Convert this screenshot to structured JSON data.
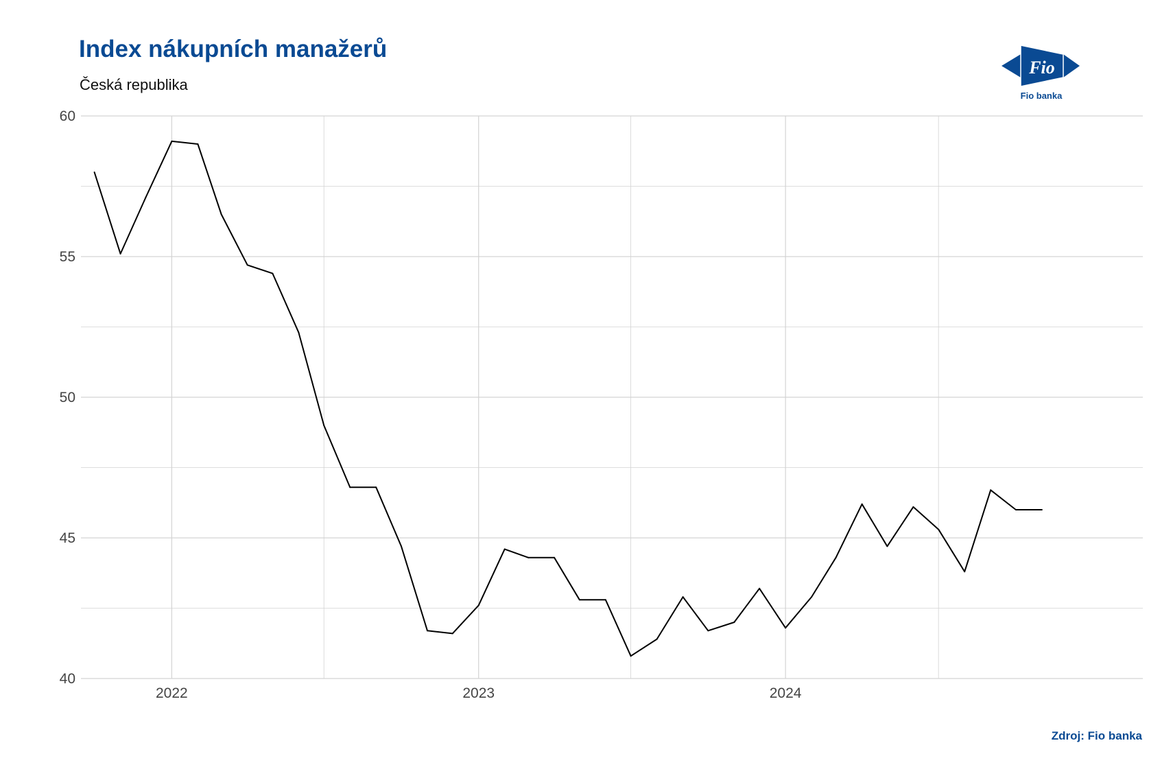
{
  "header": {
    "title": "Index nákupních manažerů",
    "subtitle": "Česká republika"
  },
  "logo": {
    "mark_text": "Fio",
    "caption": "Fio banka",
    "color": "#0a4a93"
  },
  "footer": {
    "source": "Zdroj: Fio banka"
  },
  "colors": {
    "line": "#000000",
    "grid": "#d3d3d3",
    "brand": "#0a4a93"
  },
  "chart_data": {
    "type": "line",
    "title": "Index nákupních manažerů",
    "subtitle": "Česká republika",
    "xlabel": "",
    "ylabel": "",
    "grid": true,
    "ylim": [
      40,
      60
    ],
    "y_ticks": [
      40,
      45,
      50,
      55,
      60
    ],
    "x_range": [
      "2021-09-15",
      "2025-03-01"
    ],
    "x_ticks": [
      {
        "date": "2022-01-01",
        "label": "2022"
      },
      {
        "date": "2023-01-01",
        "label": "2023"
      },
      {
        "date": "2024-01-01",
        "label": "2024"
      }
    ],
    "series": [
      {
        "x": [
          "2021-10-01",
          "2021-11-01",
          "2021-12-01",
          "2022-01-01",
          "2022-02-01",
          "2022-03-01",
          "2022-04-01",
          "2022-05-01",
          "2022-06-01",
          "2022-07-01",
          "2022-08-01",
          "2022-09-01",
          "2022-10-01",
          "2022-11-01",
          "2022-12-01",
          "2023-01-01",
          "2023-02-01",
          "2023-03-01",
          "2023-04-01",
          "2023-05-01",
          "2023-06-01",
          "2023-07-01",
          "2023-08-01",
          "2023-09-01",
          "2023-10-01",
          "2023-11-01",
          "2023-12-01",
          "2024-01-01",
          "2024-02-01",
          "2024-03-01",
          "2024-04-01",
          "2024-05-01",
          "2024-06-01",
          "2024-07-01",
          "2024-08-01",
          "2024-09-01",
          "2024-10-01",
          "2024-11-01"
        ],
        "values": [
          58.0,
          55.1,
          57.1,
          59.1,
          59.0,
          56.5,
          54.7,
          54.4,
          52.3,
          49.0,
          46.8,
          46.8,
          44.7,
          41.7,
          41.6,
          42.6,
          44.6,
          44.3,
          44.3,
          42.8,
          42.8,
          40.8,
          41.4,
          42.9,
          41.7,
          42.0,
          43.2,
          41.8,
          42.9,
          44.3,
          46.2,
          44.7,
          46.1,
          45.3,
          43.8,
          46.7,
          46.0,
          46.0
        ]
      }
    ]
  }
}
